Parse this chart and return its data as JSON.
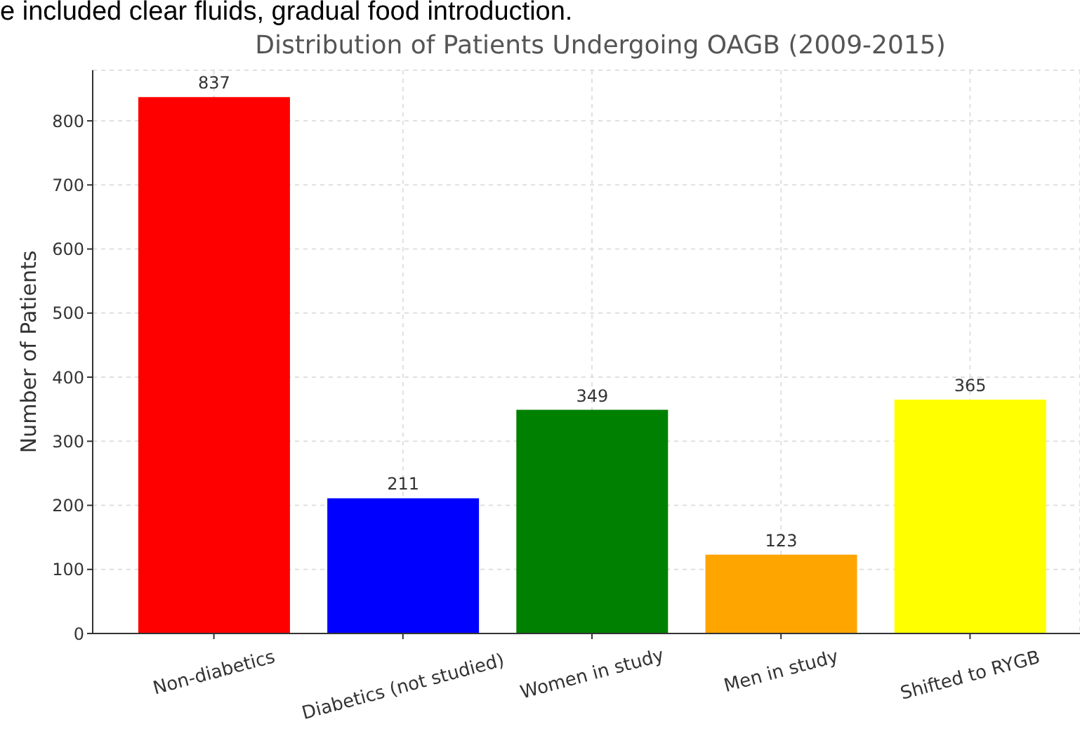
{
  "chart_data": {
    "type": "bar",
    "title": "Distribution of Patients Undergoing OAGB (2009-2015)",
    "ylabel": "Number of Patients",
    "annotations": [
      "e included clear fluids, gradual food introduction."
    ],
    "categories": [
      "Non-diabetics",
      "Diabetics (not studied)",
      "Women in study",
      "Men in study",
      "Shifted to RYGB"
    ],
    "values": [
      837,
      211,
      349,
      123,
      365
    ],
    "colors": [
      "#ff0000",
      "#0000ff",
      "#008000",
      "#ffa500",
      "#ffff00"
    ],
    "ylim": [
      0,
      879
    ],
    "yticks": [
      0,
      100,
      200,
      300,
      400,
      500,
      600,
      700,
      800
    ],
    "grid": true,
    "data_labels": true
  }
}
